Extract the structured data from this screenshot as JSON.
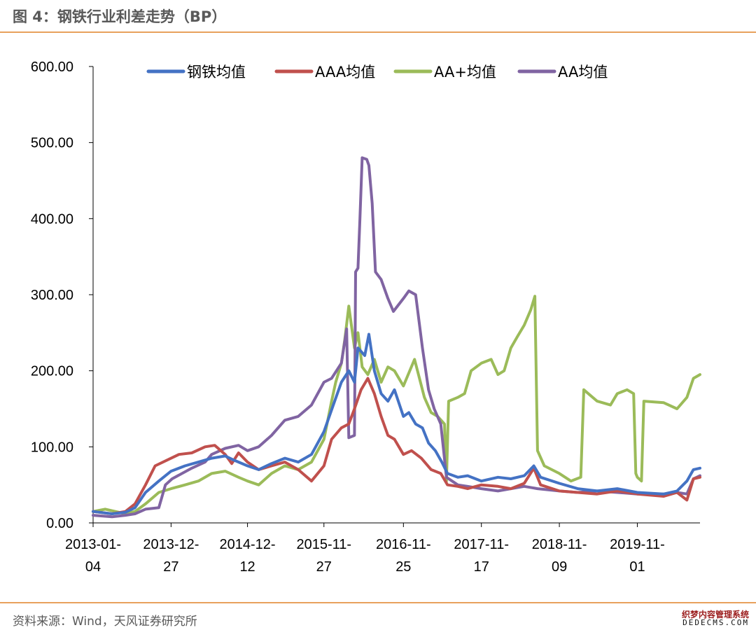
{
  "header": {
    "title": "图 4：钢铁行业利差走势（BP）"
  },
  "footer": {
    "source": "资料来源：Wind，天风证券研究所",
    "watermark_line1": "织梦内容管理系统",
    "watermark_line2": "DEDECMS.COM"
  },
  "chart_data": {
    "type": "line",
    "title": "",
    "xlabel": "",
    "ylabel": "",
    "ylim": [
      0,
      600
    ],
    "xlim": [
      "2013-01-04",
      "2020-08-14"
    ],
    "y_ticks": [
      "0.00",
      "100.00",
      "200.00",
      "300.00",
      "400.00",
      "500.00",
      "600.00"
    ],
    "x_ticks": [
      {
        "date": "2013-01-04",
        "line1": "2013-01-",
        "line2": "04"
      },
      {
        "date": "2013-12-27",
        "line1": "2013-12-",
        "line2": "27"
      },
      {
        "date": "2014-12-12",
        "line1": "2014-12-",
        "line2": "12"
      },
      {
        "date": "2015-11-27",
        "line1": "2015-11-",
        "line2": "27"
      },
      {
        "date": "2016-11-25",
        "line1": "2016-11-",
        "line2": "25"
      },
      {
        "date": "2017-11-17",
        "line1": "2017-11-",
        "line2": "17"
      },
      {
        "date": "2018-11-09",
        "line1": "2018-11-",
        "line2": "09"
      },
      {
        "date": "2019-11-01",
        "line1": "2019-11-",
        "line2": "01"
      }
    ],
    "grid": false,
    "legend_position": "top",
    "series": [
      {
        "name": "钢铁均值",
        "color": "#4472C4",
        "points": [
          [
            "2013-01-04",
            15
          ],
          [
            "2013-04-01",
            12
          ],
          [
            "2013-06-01",
            14
          ],
          [
            "2013-07-15",
            20
          ],
          [
            "2013-09-01",
            40
          ],
          [
            "2013-11-01",
            55
          ],
          [
            "2013-12-27",
            68
          ],
          [
            "2014-03-01",
            75
          ],
          [
            "2014-05-01",
            80
          ],
          [
            "2014-07-01",
            85
          ],
          [
            "2014-09-01",
            88
          ],
          [
            "2014-10-15",
            82
          ],
          [
            "2014-12-12",
            75
          ],
          [
            "2015-02-01",
            70
          ],
          [
            "2015-04-01",
            78
          ],
          [
            "2015-06-01",
            85
          ],
          [
            "2015-08-01",
            80
          ],
          [
            "2015-10-01",
            90
          ],
          [
            "2015-11-27",
            120
          ],
          [
            "2016-01-15",
            160
          ],
          [
            "2016-02-15",
            185
          ],
          [
            "2016-03-20",
            200
          ],
          [
            "2016-04-15",
            185
          ],
          [
            "2016-05-01",
            230
          ],
          [
            "2016-06-01",
            220
          ],
          [
            "2016-06-20",
            248
          ],
          [
            "2016-07-15",
            200
          ],
          [
            "2016-08-15",
            170
          ],
          [
            "2016-09-15",
            160
          ],
          [
            "2016-10-15",
            175
          ],
          [
            "2016-11-25",
            140
          ],
          [
            "2016-12-20",
            145
          ],
          [
            "2017-01-20",
            130
          ],
          [
            "2017-02-20",
            125
          ],
          [
            "2017-03-20",
            105
          ],
          [
            "2017-04-20",
            95
          ],
          [
            "2017-05-20",
            80
          ],
          [
            "2017-06-15",
            65
          ],
          [
            "2017-08-01",
            60
          ],
          [
            "2017-09-15",
            62
          ],
          [
            "2017-11-17",
            55
          ],
          [
            "2018-02-01",
            60
          ],
          [
            "2018-04-01",
            58
          ],
          [
            "2018-06-01",
            62
          ],
          [
            "2018-07-15",
            75
          ],
          [
            "2018-08-15",
            60
          ],
          [
            "2018-11-09",
            52
          ],
          [
            "2019-02-01",
            45
          ],
          [
            "2019-05-01",
            42
          ],
          [
            "2019-08-01",
            45
          ],
          [
            "2019-11-01",
            40
          ],
          [
            "2020-03-01",
            38
          ],
          [
            "2020-05-01",
            42
          ],
          [
            "2020-06-15",
            55
          ],
          [
            "2020-07-15",
            70
          ],
          [
            "2020-08-14",
            72
          ]
        ]
      },
      {
        "name": "AAA均值",
        "color": "#C0504D",
        "points": [
          [
            "2013-01-04",
            15
          ],
          [
            "2013-04-01",
            12
          ],
          [
            "2013-06-01",
            15
          ],
          [
            "2013-07-15",
            25
          ],
          [
            "2013-09-01",
            50
          ],
          [
            "2013-10-15",
            75
          ],
          [
            "2013-12-27",
            85
          ],
          [
            "2014-02-01",
            90
          ],
          [
            "2014-04-01",
            92
          ],
          [
            "2014-06-01",
            100
          ],
          [
            "2014-07-15",
            102
          ],
          [
            "2014-09-01",
            90
          ],
          [
            "2014-10-01",
            78
          ],
          [
            "2014-11-01",
            92
          ],
          [
            "2014-12-12",
            80
          ],
          [
            "2015-02-01",
            70
          ],
          [
            "2015-04-01",
            75
          ],
          [
            "2015-06-01",
            80
          ],
          [
            "2015-08-01",
            70
          ],
          [
            "2015-10-01",
            55
          ],
          [
            "2015-11-27",
            75
          ],
          [
            "2016-01-01",
            110
          ],
          [
            "2016-02-15",
            125
          ],
          [
            "2016-03-20",
            130
          ],
          [
            "2016-04-15",
            150
          ],
          [
            "2016-05-15",
            175
          ],
          [
            "2016-06-15",
            190
          ],
          [
            "2016-07-15",
            170
          ],
          [
            "2016-08-15",
            140
          ],
          [
            "2016-09-15",
            115
          ],
          [
            "2016-10-15",
            110
          ],
          [
            "2016-11-25",
            90
          ],
          [
            "2017-01-01",
            95
          ],
          [
            "2017-02-15",
            85
          ],
          [
            "2017-04-01",
            70
          ],
          [
            "2017-05-15",
            65
          ],
          [
            "2017-06-15",
            50
          ],
          [
            "2017-08-01",
            48
          ],
          [
            "2017-09-15",
            45
          ],
          [
            "2017-11-17",
            50
          ],
          [
            "2018-02-01",
            48
          ],
          [
            "2018-04-01",
            45
          ],
          [
            "2018-06-01",
            52
          ],
          [
            "2018-07-15",
            72
          ],
          [
            "2018-08-15",
            50
          ],
          [
            "2018-11-09",
            42
          ],
          [
            "2019-02-01",
            40
          ],
          [
            "2019-05-01",
            38
          ],
          [
            "2019-08-01",
            42
          ],
          [
            "2019-11-01",
            38
          ],
          [
            "2020-03-01",
            35
          ],
          [
            "2020-05-01",
            40
          ],
          [
            "2020-06-15",
            30
          ],
          [
            "2020-07-15",
            58
          ],
          [
            "2020-08-14",
            60
          ]
        ]
      },
      {
        "name": "AA+均值",
        "color": "#9BBB59",
        "points": [
          [
            "2013-01-04",
            15
          ],
          [
            "2013-03-01",
            18
          ],
          [
            "2013-06-01",
            12
          ],
          [
            "2013-07-15",
            15
          ],
          [
            "2013-09-01",
            25
          ],
          [
            "2013-11-01",
            40
          ],
          [
            "2013-12-27",
            45
          ],
          [
            "2014-03-01",
            50
          ],
          [
            "2014-05-01",
            55
          ],
          [
            "2014-07-01",
            65
          ],
          [
            "2014-09-01",
            68
          ],
          [
            "2014-11-01",
            60
          ],
          [
            "2014-12-12",
            55
          ],
          [
            "2015-02-01",
            50
          ],
          [
            "2015-04-01",
            65
          ],
          [
            "2015-06-01",
            75
          ],
          [
            "2015-08-01",
            70
          ],
          [
            "2015-10-01",
            80
          ],
          [
            "2015-11-27",
            110
          ],
          [
            "2016-01-01",
            160
          ],
          [
            "2016-01-20",
            185
          ],
          [
            "2016-02-15",
            210
          ],
          [
            "2016-03-01",
            240
          ],
          [
            "2016-03-20",
            285
          ],
          [
            "2016-04-15",
            230
          ],
          [
            "2016-05-01",
            250
          ],
          [
            "2016-05-20",
            205
          ],
          [
            "2016-06-15",
            195
          ],
          [
            "2016-07-15",
            215
          ],
          [
            "2016-08-15",
            185
          ],
          [
            "2016-09-15",
            205
          ],
          [
            "2016-10-15",
            200
          ],
          [
            "2016-11-25",
            180
          ],
          [
            "2017-01-15",
            215
          ],
          [
            "2017-03-01",
            165
          ],
          [
            "2017-04-01",
            145
          ],
          [
            "2017-05-01",
            140
          ],
          [
            "2017-06-01",
            130
          ],
          [
            "2017-06-10",
            55
          ],
          [
            "2017-06-20",
            160
          ],
          [
            "2017-08-01",
            165
          ],
          [
            "2017-09-01",
            170
          ],
          [
            "2017-10-01",
            200
          ],
          [
            "2017-11-17",
            210
          ],
          [
            "2018-01-01",
            215
          ],
          [
            "2018-02-01",
            195
          ],
          [
            "2018-03-01",
            200
          ],
          [
            "2018-04-01",
            230
          ],
          [
            "2018-05-01",
            245
          ],
          [
            "2018-06-01",
            260
          ],
          [
            "2018-07-01",
            280
          ],
          [
            "2018-07-20",
            298
          ],
          [
            "2018-08-01",
            95
          ],
          [
            "2018-09-01",
            75
          ],
          [
            "2018-11-09",
            65
          ],
          [
            "2019-01-01",
            55
          ],
          [
            "2019-02-15",
            60
          ],
          [
            "2019-03-01",
            175
          ],
          [
            "2019-05-01",
            160
          ],
          [
            "2019-07-01",
            155
          ],
          [
            "2019-08-01",
            170
          ],
          [
            "2019-09-15",
            175
          ],
          [
            "2019-10-15",
            170
          ],
          [
            "2019-10-25",
            65
          ],
          [
            "2019-11-01",
            60
          ],
          [
            "2019-11-20",
            55
          ],
          [
            "2019-12-01",
            160
          ],
          [
            "2020-03-01",
            158
          ],
          [
            "2020-05-01",
            150
          ],
          [
            "2020-06-15",
            165
          ],
          [
            "2020-07-15",
            190
          ],
          [
            "2020-08-14",
            195
          ]
        ]
      },
      {
        "name": "AA均值",
        "color": "#8064A2",
        "points": [
          [
            "2013-01-04",
            10
          ],
          [
            "2013-04-01",
            8
          ],
          [
            "2013-06-01",
            10
          ],
          [
            "2013-07-15",
            12
          ],
          [
            "2013-09-01",
            18
          ],
          [
            "2013-11-01",
            20
          ],
          [
            "2013-12-01",
            50
          ],
          [
            "2014-01-01",
            58
          ],
          [
            "2014-04-01",
            72
          ],
          [
            "2014-06-01",
            80
          ],
          [
            "2014-07-01",
            90
          ],
          [
            "2014-09-01",
            98
          ],
          [
            "2014-11-01",
            102
          ],
          [
            "2014-12-12",
            95
          ],
          [
            "2015-02-01",
            100
          ],
          [
            "2015-04-01",
            115
          ],
          [
            "2015-06-01",
            135
          ],
          [
            "2015-08-01",
            140
          ],
          [
            "2015-10-01",
            155
          ],
          [
            "2015-11-27",
            185
          ],
          [
            "2016-01-01",
            190
          ],
          [
            "2016-02-15",
            210
          ],
          [
            "2016-03-10",
            255
          ],
          [
            "2016-03-20",
            112
          ],
          [
            "2016-04-15",
            115
          ],
          [
            "2016-04-20",
            330
          ],
          [
            "2016-05-01",
            335
          ],
          [
            "2016-05-10",
            400
          ],
          [
            "2016-05-20",
            480
          ],
          [
            "2016-06-10",
            478
          ],
          [
            "2016-06-20",
            470
          ],
          [
            "2016-07-05",
            420
          ],
          [
            "2016-07-20",
            330
          ],
          [
            "2016-08-15",
            320
          ],
          [
            "2016-09-15",
            295
          ],
          [
            "2016-10-10",
            278
          ],
          [
            "2016-11-25",
            295
          ],
          [
            "2016-12-20",
            305
          ],
          [
            "2017-01-20",
            300
          ],
          [
            "2017-02-20",
            230
          ],
          [
            "2017-03-20",
            175
          ],
          [
            "2017-04-15",
            150
          ],
          [
            "2017-05-15",
            130
          ],
          [
            "2017-06-10",
            60
          ],
          [
            "2017-08-01",
            50
          ],
          [
            "2017-09-15",
            48
          ],
          [
            "2017-11-17",
            45
          ],
          [
            "2018-02-01",
            42
          ],
          [
            "2018-04-01",
            45
          ],
          [
            "2018-06-01",
            48
          ],
          [
            "2018-08-01",
            45
          ],
          [
            "2018-11-09",
            42
          ],
          [
            "2019-02-01",
            40
          ],
          [
            "2019-05-01",
            42
          ],
          [
            "2019-08-01",
            40
          ],
          [
            "2019-11-01",
            38
          ],
          [
            "2020-03-01",
            38
          ],
          [
            "2020-05-01",
            40
          ],
          [
            "2020-06-15",
            38
          ],
          [
            "2020-07-15",
            58
          ],
          [
            "2020-08-14",
            62
          ]
        ]
      }
    ]
  }
}
